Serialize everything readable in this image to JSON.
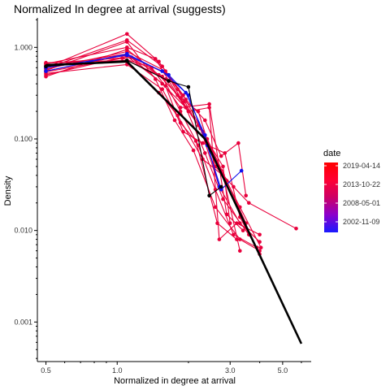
{
  "chart_data": {
    "type": "line",
    "title": "Normalized In degree at arrival (suggests)",
    "xlabel": "Normalized in degree at arrival",
    "ylabel": "Density",
    "x_scale": "log",
    "y_scale": "log",
    "xlim": [
      0.46,
      6.6
    ],
    "ylim": [
      0.00037,
      2.1
    ],
    "x_ticks": [
      {
        "value": 0.5,
        "label": "0.5"
      },
      {
        "value": 1.0,
        "label": "1.0"
      },
      {
        "value": 3.0,
        "label": "3.0"
      },
      {
        "value": 5.0,
        "label": "5.0"
      }
    ],
    "y_ticks": [
      {
        "value": 0.001,
        "label": "0.001"
      },
      {
        "value": 0.01,
        "label": "0.010"
      },
      {
        "value": 0.1,
        "label": "0.100"
      },
      {
        "value": 1.0,
        "label": "1.000"
      }
    ],
    "grid": false,
    "legend": {
      "title": "date",
      "position": "right",
      "gradient": [
        "#1a1aff",
        "#8b00cc",
        "#cc0066",
        "#ff0033",
        "#ff0000"
      ],
      "labels": [
        "2019-04-14",
        "2013-10-22",
        "2008-05-01",
        "2002-11-09"
      ]
    },
    "colors": {
      "red": "#e8003c",
      "blue": "#1010ee",
      "black": "#000000"
    },
    "series": [
      {
        "color_key": "red",
        "points": [
          [
            0.5,
            0.68
          ],
          [
            1.1,
            0.72
          ],
          [
            1.55,
            0.48
          ],
          [
            1.85,
            0.2
          ],
          [
            2.2,
            0.085
          ],
          [
            2.6,
            0.028
          ],
          [
            3.1,
            0.009
          ],
          [
            3.9,
            0.0065
          ]
        ]
      },
      {
        "color_key": "red",
        "points": [
          [
            0.5,
            0.66
          ],
          [
            1.1,
            1.0
          ],
          [
            1.45,
            0.75
          ],
          [
            1.8,
            0.3
          ],
          [
            2.25,
            0.13
          ],
          [
            2.7,
            0.03
          ],
          [
            3.3,
            0.012
          ],
          [
            4.0,
            0.0075
          ]
        ]
      },
      {
        "color_key": "red",
        "points": [
          [
            0.5,
            0.62
          ],
          [
            1.1,
            0.85
          ],
          [
            1.55,
            0.4
          ],
          [
            1.95,
            0.22
          ],
          [
            2.35,
            0.07
          ],
          [
            2.8,
            0.022
          ],
          [
            3.6,
            0.009
          ]
        ]
      },
      {
        "color_key": "red",
        "points": [
          [
            0.5,
            0.6
          ],
          [
            1.1,
            1.4
          ],
          [
            1.5,
            0.7
          ],
          [
            1.9,
            0.3
          ],
          [
            2.3,
            0.12
          ],
          [
            2.75,
            0.045
          ],
          [
            3.3,
            0.018
          ],
          [
            4.05,
            0.0065
          ]
        ]
      },
      {
        "color_key": "red",
        "points": [
          [
            0.5,
            0.58
          ],
          [
            1.1,
            0.9
          ],
          [
            1.6,
            0.55
          ],
          [
            1.9,
            0.25
          ],
          [
            2.4,
            0.1
          ],
          [
            2.9,
            0.035
          ],
          [
            3.5,
            0.012
          ]
        ]
      },
      {
        "color_key": "red",
        "points": [
          [
            0.5,
            0.56
          ],
          [
            1.1,
            1.15
          ],
          [
            1.45,
            0.45
          ],
          [
            1.75,
            0.16
          ],
          [
            2.1,
            0.075
          ],
          [
            2.6,
            0.018
          ],
          [
            3.3,
            0.008
          ],
          [
            4.0,
            0.006
          ]
        ]
      },
      {
        "color_key": "red",
        "points": [
          [
            0.5,
            0.54
          ],
          [
            1.05,
            0.76
          ],
          [
            1.4,
            0.6
          ],
          [
            1.85,
            0.22
          ],
          [
            2.45,
            0.24
          ],
          [
            2.9,
            0.015
          ],
          [
            3.4,
            0.01
          ]
        ]
      },
      {
        "color_key": "red",
        "points": [
          [
            0.5,
            0.52
          ],
          [
            1.1,
            0.65
          ],
          [
            1.55,
            0.35
          ],
          [
            1.85,
            0.15
          ],
          [
            2.15,
            0.095
          ],
          [
            2.65,
            0.012
          ],
          [
            3.2,
            0.008
          ]
        ]
      },
      {
        "color_key": "red",
        "points": [
          [
            0.5,
            0.5
          ],
          [
            1.1,
            0.8
          ],
          [
            1.6,
            0.38
          ],
          [
            1.9,
            0.12
          ],
          [
            2.3,
            0.09
          ],
          [
            2.85,
            0.07
          ],
          [
            3.3,
            0.014
          ],
          [
            4.0,
            0.0055
          ]
        ]
      },
      {
        "color_key": "red",
        "points": [
          [
            0.5,
            0.48
          ],
          [
            1.1,
            0.95
          ],
          [
            1.5,
            0.5
          ],
          [
            1.85,
            0.28
          ],
          [
            2.2,
            0.2
          ],
          [
            2.6,
            0.05
          ],
          [
            3.1,
            0.03
          ],
          [
            3.6,
            0.02
          ],
          [
            5.7,
            0.0105
          ]
        ]
      },
      {
        "color_key": "red",
        "points": [
          [
            0.5,
            0.55
          ],
          [
            1.1,
            0.83
          ],
          [
            1.6,
            0.45
          ],
          [
            2.0,
            0.2
          ],
          [
            2.45,
            0.22
          ],
          [
            2.7,
            0.008
          ],
          [
            3.2,
            0.012
          ],
          [
            4.0,
            0.009
          ]
        ]
      },
      {
        "color_key": "red",
        "points": [
          [
            0.5,
            0.64
          ],
          [
            1.1,
            0.7
          ],
          [
            1.5,
            0.32
          ],
          [
            1.8,
            0.18
          ],
          [
            2.3,
            0.06
          ],
          [
            2.8,
            0.04
          ],
          [
            3.3,
            0.006
          ]
        ]
      },
      {
        "color_key": "red",
        "points": [
          [
            0.5,
            0.67
          ],
          [
            1.15,
            0.78
          ],
          [
            1.6,
            0.52
          ],
          [
            1.95,
            0.27
          ],
          [
            2.35,
            0.16
          ],
          [
            2.75,
            0.065
          ],
          [
            3.25,
            0.09
          ],
          [
            3.5,
            0.024
          ]
        ]
      },
      {
        "color_key": "red",
        "points": [
          [
            0.5,
            0.59
          ],
          [
            1.1,
            1.2
          ],
          [
            1.55,
            0.62
          ],
          [
            1.8,
            0.35
          ],
          [
            2.2,
            0.14
          ],
          [
            2.8,
            0.05
          ],
          [
            3.0,
            0.012
          ]
        ]
      },
      {
        "color_key": "blue",
        "points": [
          [
            0.5,
            0.55
          ],
          [
            1.1,
            0.85
          ],
          [
            1.65,
            0.5
          ],
          [
            2.0,
            0.3
          ],
          [
            2.4,
            0.085
          ],
          [
            2.75,
            0.028
          ],
          [
            3.35,
            0.045
          ]
        ]
      },
      {
        "color_key": "blue",
        "points": [
          [
            0.5,
            0.6
          ],
          [
            1.1,
            0.82
          ],
          [
            1.55,
            0.55
          ],
          [
            1.95,
            0.32
          ],
          [
            2.35,
            0.11
          ],
          [
            2.7,
            0.03
          ]
        ]
      },
      {
        "color_key": "black",
        "points": [
          [
            0.5,
            0.62
          ],
          [
            1.1,
            0.72
          ],
          [
            1.65,
            0.43
          ],
          [
            2.0,
            0.37
          ],
          [
            2.45,
            0.024
          ],
          [
            2.75,
            0.03
          ]
        ]
      },
      {
        "color_key": "black",
        "points": [
          [
            0.5,
            0.64
          ],
          [
            1.1,
            0.7
          ],
          [
            2.35,
            0.1
          ],
          [
            6.0,
            0.00058
          ]
        ],
        "thick": true,
        "no_markers": true
      }
    ]
  }
}
